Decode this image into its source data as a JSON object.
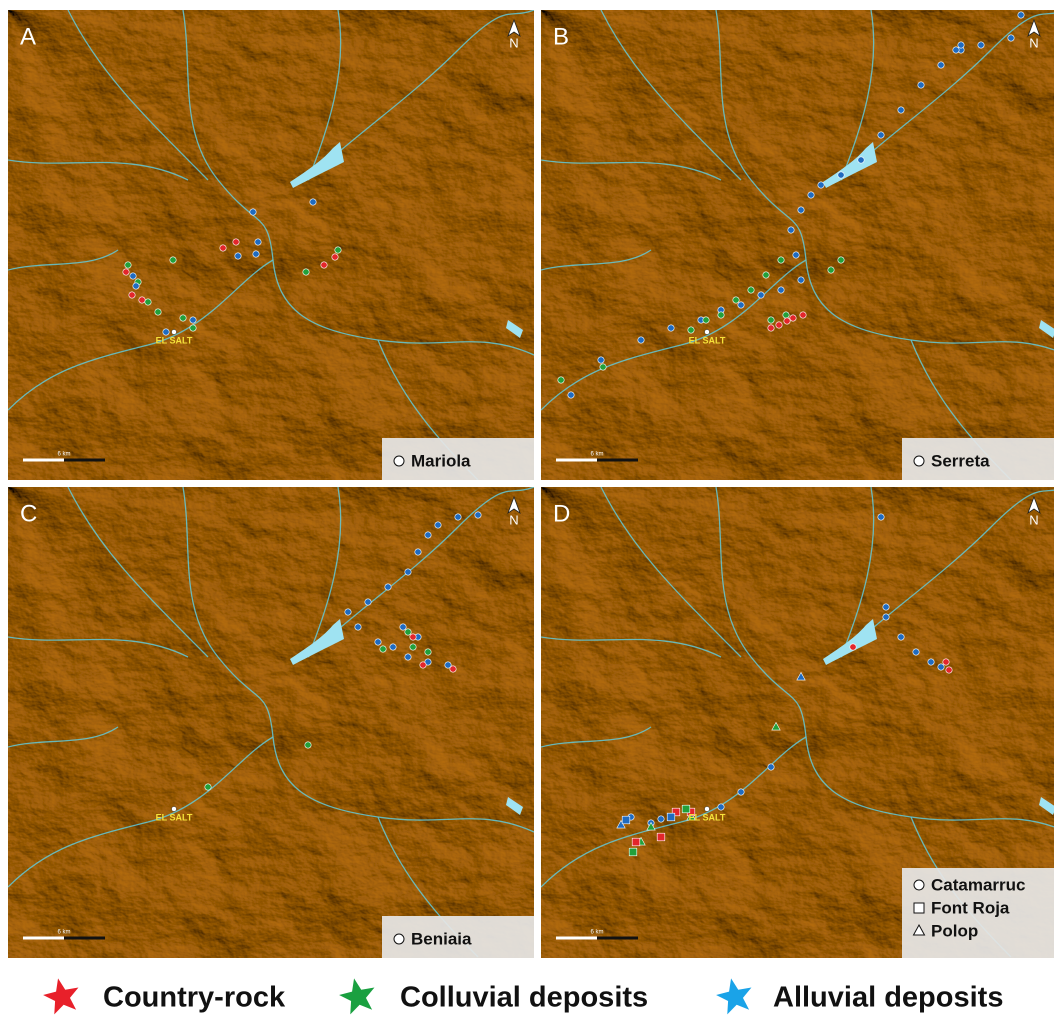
{
  "panels": [
    {
      "letter": "A",
      "north": "N",
      "site": "EL SALT",
      "scale": "6 km",
      "legend": [
        "Mariola"
      ]
    },
    {
      "letter": "B",
      "north": "N",
      "site": "EL SALT",
      "scale": "6 km",
      "legend": [
        "Serreta"
      ]
    },
    {
      "letter": "C",
      "north": "N",
      "site": "EL SALT",
      "scale": "6 km",
      "legend": [
        "Beniaia"
      ]
    },
    {
      "letter": "D",
      "north": "N",
      "site": "EL SALT",
      "scale": "6 km",
      "legend": [
        "Catamarruc",
        "Font Roja",
        "Polop"
      ]
    }
  ],
  "legend": [
    "Country-rock",
    "Colluvial deposits",
    "Alluvial deposits"
  ]
}
